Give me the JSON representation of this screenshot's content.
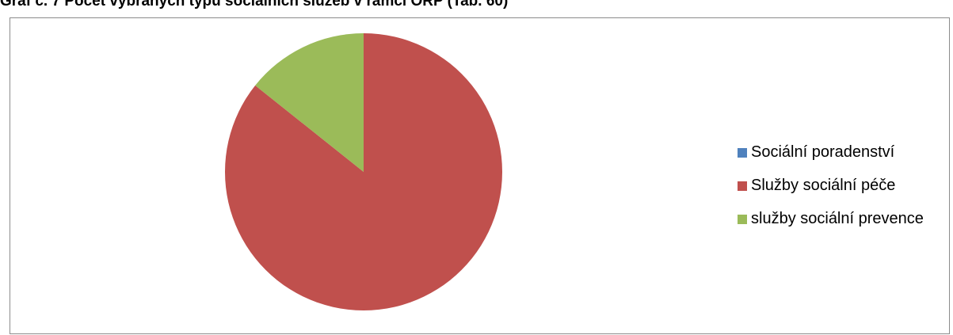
{
  "header": {
    "title": "Graf č. 7 Počet vybraných typů sociálních služeb v rámci ORP (Tab. 60)"
  },
  "chart_data": {
    "type": "pie",
    "title": "Graf č. 7 Počet vybraných typů sociálních služeb v rámci ORP (Tab. 60)",
    "categories": [
      "Sociální poradenství",
      "Služby sociální péče",
      "služby sociální prevence"
    ],
    "values": [
      0,
      6,
      1
    ],
    "colors": [
      "#4f81bd",
      "#c0504d",
      "#9bbb59"
    ],
    "start_angle_deg": 0,
    "direction": "clockwise",
    "legend_position": "right"
  }
}
